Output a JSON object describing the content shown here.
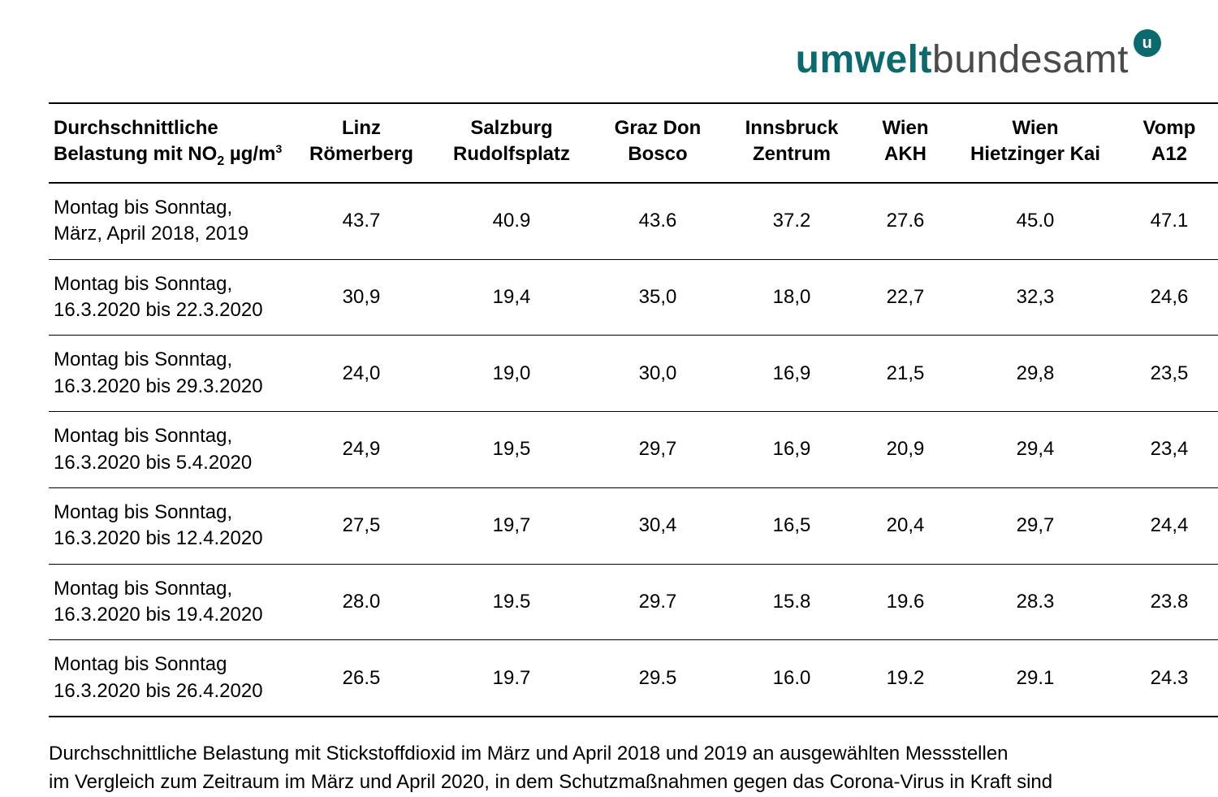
{
  "logo": {
    "part_bold": "umwelt",
    "part_thin": "bundesamt",
    "badge_letter": "u",
    "bold_color": "#0a6a6e",
    "thin_color": "#4a4a4a",
    "badge_bg": "#0a6a6e",
    "badge_fg": "#ffffff"
  },
  "table": {
    "type": "table",
    "header_label_line1": "Durchschnittliche",
    "header_label_line2_prefix": "Belastung mit NO",
    "header_label_line2_sub": "2",
    "header_label_line2_unit": " µg/m",
    "header_label_line2_sup": "3",
    "columns": [
      {
        "line1": "Linz",
        "line2": "Römerberg"
      },
      {
        "line1": "Salzburg",
        "line2": "Rudolfsplatz"
      },
      {
        "line1": "Graz Don",
        "line2": "Bosco"
      },
      {
        "line1": "Innsbruck",
        "line2": "Zentrum"
      },
      {
        "line1": "Wien",
        "line2": "AKH"
      },
      {
        "line1": "Wien",
        "line2": "Hietzinger Kai"
      },
      {
        "line1": "Vomp",
        "line2": "A12"
      }
    ],
    "rows": [
      {
        "l1": "Montag bis Sonntag,",
        "l2": "März, April 2018, 2019",
        "v": [
          "43.7",
          "40.9",
          "43.6",
          "37.2",
          "27.6",
          "45.0",
          "47.1"
        ]
      },
      {
        "l1": "Montag bis Sonntag,",
        "l2": "16.3.2020 bis 22.3.2020",
        "v": [
          "30,9",
          "19,4",
          "35,0",
          "18,0",
          "22,7",
          "32,3",
          "24,6"
        ]
      },
      {
        "l1": "Montag bis Sonntag,",
        "l2": "16.3.2020 bis 29.3.2020",
        "v": [
          "24,0",
          "19,0",
          "30,0",
          "16,9",
          "21,5",
          "29,8",
          "23,5"
        ]
      },
      {
        "l1": "Montag bis Sonntag,",
        "l2": "16.3.2020 bis 5.4.2020",
        "v": [
          "24,9",
          "19,5",
          "29,7",
          "16,9",
          "20,9",
          "29,4",
          "23,4"
        ]
      },
      {
        "l1": "Montag bis Sonntag,",
        "l2": "16.3.2020 bis 12.4.2020",
        "v": [
          "27,5",
          "19,7",
          "30,4",
          "16,5",
          "20,4",
          "29,7",
          "24,4"
        ]
      },
      {
        "l1": "Montag bis Sonntag,",
        "l2": "16.3.2020 bis 19.4.2020",
        "v": [
          "28.0",
          "19.5",
          "29.7",
          "15.8",
          "19.6",
          "28.3",
          "23.8"
        ]
      },
      {
        "l1": "Montag bis Sonntag",
        "l2": "16.3.2020 bis 26.4.2020",
        "v": [
          "26.5",
          "19.7",
          "29.5",
          "16.0",
          "19.2",
          "29.1",
          "24.3"
        ]
      }
    ],
    "border_color": "#000000",
    "font_size_pt": 18,
    "background_color": "#ffffff"
  },
  "caption": {
    "line1": "Durchschnittliche Belastung mit Stickstoffdioxid im März und April 2018 und 2019 an ausgewählten Messstellen",
    "line2": "im Vergleich zum Zeitraum im März und April 2020, in dem Schutzmaßnahmen gegen das Corona-Virus in Kraft sind"
  }
}
